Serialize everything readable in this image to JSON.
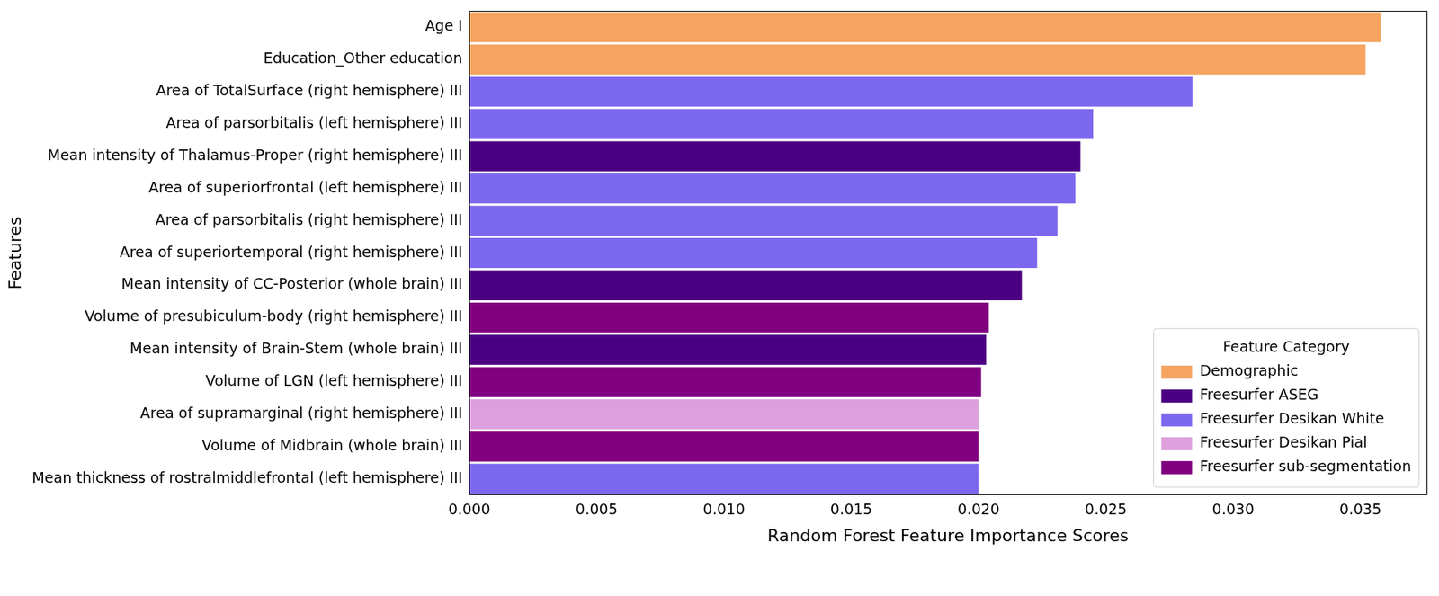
{
  "chart_data": {
    "type": "bar",
    "orientation": "horizontal",
    "xlabel": "Random Forest Feature Importance Scores",
    "ylabel": "Features",
    "legend_title": "Feature Category",
    "legend": "lower right",
    "grid": false,
    "categories": [
      "Age I",
      "Education_Other education",
      "Area of TotalSurface (right hemisphere) III",
      "Area of parsorbitalis (left hemisphere) III",
      "Mean intensity of Thalamus-Proper (right hemisphere) III",
      "Area of superiorfrontal (left hemisphere) III",
      "Area of parsorbitalis (right hemisphere) III",
      "Area of superiortemporal (right hemisphere) III",
      "Mean intensity of CC-Posterior (whole brain) III",
      "Volume of presubiculum-body (right hemisphere) III",
      "Mean intensity of Brain-Stem (whole brain) III",
      "Volume of LGN (left hemisphere) III",
      "Area of supramarginal (right hemisphere) III",
      "Volume of Midbrain (whole brain) III",
      "Mean thickness of rostralmiddlefrontal (left hemisphere) III"
    ],
    "series": [
      {
        "name": "Demographic",
        "color": "#f4a460",
        "values": [
          0.0358,
          0.0352,
          null,
          null,
          null,
          null,
          null,
          null,
          null,
          null,
          null,
          null,
          null,
          null,
          null
        ]
      },
      {
        "name": "Freesurfer ASEG",
        "color": "#4b0082",
        "values": [
          null,
          null,
          null,
          null,
          0.024,
          null,
          null,
          null,
          0.0217,
          null,
          0.0203,
          null,
          null,
          null,
          null
        ]
      },
      {
        "name": "Freesurfer Desikan White",
        "color": "#7b68ee",
        "values": [
          null,
          null,
          0.0284,
          0.0245,
          null,
          0.0238,
          0.0231,
          0.0223,
          null,
          null,
          null,
          null,
          null,
          null,
          0.02
        ]
      },
      {
        "name": "Freesurfer Desikan Pial",
        "color": "#dda0dd",
        "values": [
          null,
          null,
          null,
          null,
          null,
          null,
          null,
          null,
          null,
          null,
          null,
          null,
          0.02,
          null,
          null
        ]
      },
      {
        "name": "Freesurfer sub-segmentation",
        "color": "#800080",
        "values": [
          null,
          null,
          null,
          null,
          null,
          null,
          null,
          null,
          null,
          0.0204,
          null,
          0.0201,
          null,
          0.02,
          null
        ]
      }
    ],
    "xlim": [
      0,
      0.0376
    ],
    "xticks": [
      {
        "value": 0,
        "label": "0.000"
      },
      {
        "value": 0.005,
        "label": "0.005"
      },
      {
        "value": 0.01,
        "label": "0.010"
      },
      {
        "value": 0.015,
        "label": "0.015"
      },
      {
        "value": 0.02,
        "label": "0.020"
      },
      {
        "value": 0.025,
        "label": "0.025"
      },
      {
        "value": 0.03,
        "label": "0.030"
      },
      {
        "value": 0.035,
        "label": "0.035"
      }
    ]
  }
}
